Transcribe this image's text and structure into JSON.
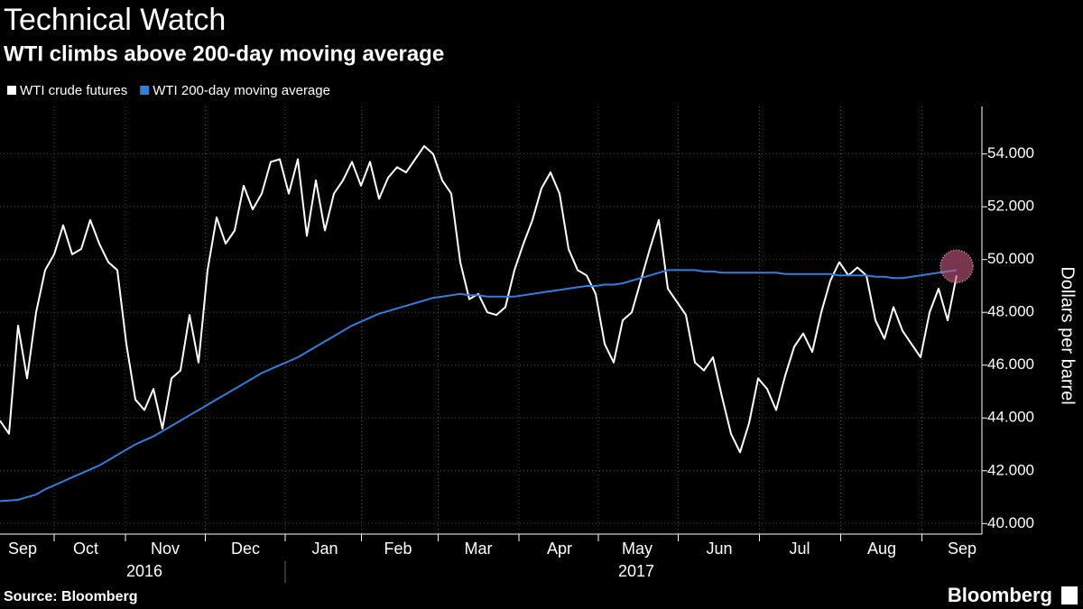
{
  "chart_data": {
    "type": "line",
    "title": "Technical Watch",
    "subtitle": "WTI climbs above 200-day moving average",
    "y_label": "Dollars per barrel",
    "source": "Source: Bloomberg",
    "brand": "Bloomberg",
    "series": [
      {
        "name": "WTI crude futures",
        "color": "#ffffff",
        "values": [
          43.9,
          43.4,
          47.5,
          45.5,
          48.0,
          49.6,
          50.2,
          51.3,
          50.2,
          50.4,
          51.5,
          50.6,
          49.9,
          49.6,
          46.8,
          44.7,
          44.3,
          45.1,
          43.6,
          45.5,
          45.8,
          47.9,
          46.1,
          49.6,
          51.6,
          50.6,
          51.1,
          52.8,
          51.9,
          52.5,
          53.7,
          53.8,
          52.5,
          53.8,
          50.9,
          53.0,
          51.1,
          52.5,
          53.0,
          53.7,
          52.8,
          53.7,
          52.3,
          53.1,
          53.5,
          53.3,
          53.8,
          54.3,
          54.0,
          53.0,
          52.5,
          49.9,
          48.5,
          48.7,
          48.0,
          47.9,
          48.2,
          49.6,
          50.6,
          51.5,
          52.7,
          53.3,
          52.5,
          50.4,
          49.6,
          49.4,
          48.7,
          46.8,
          46.1,
          47.7,
          48.0,
          49.2,
          50.4,
          51.5,
          48.9,
          48.4,
          47.9,
          46.1,
          45.8,
          46.3,
          44.8,
          43.4,
          42.7,
          43.8,
          45.5,
          45.1,
          44.3,
          45.6,
          46.7,
          47.2,
          46.5,
          48.0,
          49.2,
          49.9,
          49.4,
          49.7,
          49.4,
          47.7,
          47.0,
          48.2,
          47.3,
          46.8,
          46.3,
          48.0,
          48.9,
          47.7,
          49.4
        ]
      },
      {
        "name": "WTI 200-day moving average",
        "color": "#2d7fe0",
        "values": [
          40.85,
          40.87,
          40.9,
          41.0,
          41.1,
          41.3,
          41.45,
          41.6,
          41.75,
          41.9,
          42.05,
          42.2,
          42.4,
          42.6,
          42.8,
          43.0,
          43.15,
          43.3,
          43.5,
          43.7,
          43.9,
          44.1,
          44.3,
          44.5,
          44.7,
          44.9,
          45.1,
          45.3,
          45.5,
          45.7,
          45.85,
          46.0,
          46.15,
          46.3,
          46.5,
          46.7,
          46.9,
          47.1,
          47.3,
          47.5,
          47.65,
          47.8,
          47.95,
          48.05,
          48.15,
          48.25,
          48.35,
          48.45,
          48.55,
          48.6,
          48.65,
          48.7,
          48.65,
          48.65,
          48.6,
          48.6,
          48.6,
          48.6,
          48.65,
          48.7,
          48.75,
          48.8,
          48.85,
          48.9,
          48.95,
          49.0,
          49.0,
          49.05,
          49.05,
          49.1,
          49.2,
          49.3,
          49.4,
          49.5,
          49.6,
          49.6,
          49.6,
          49.6,
          49.55,
          49.55,
          49.5,
          49.5,
          49.5,
          49.5,
          49.5,
          49.5,
          49.5,
          49.45,
          49.45,
          49.45,
          49.45,
          49.45,
          49.45,
          49.4,
          49.4,
          49.4,
          49.4,
          49.35,
          49.35,
          49.3,
          49.3,
          49.35,
          49.4,
          49.45,
          49.5,
          49.55,
          49.6
        ]
      }
    ],
    "xlim": [
      0,
      108.8
    ],
    "xticks": [
      {
        "value": 2.5,
        "label": "Sep"
      },
      {
        "value": 9.5,
        "label": "Oct"
      },
      {
        "value": 18.3,
        "label": "Nov"
      },
      {
        "value": 27.2,
        "label": "Dec"
      },
      {
        "value": 36,
        "label": "Jan"
      },
      {
        "value": 44.1,
        "label": "Feb"
      },
      {
        "value": 53,
        "label": "Mar"
      },
      {
        "value": 62,
        "label": "Apr"
      },
      {
        "value": 70.6,
        "label": "May"
      },
      {
        "value": 79.7,
        "label": "Jun"
      },
      {
        "value": 88.6,
        "label": "Jul"
      },
      {
        "value": 97.7,
        "label": "Aug"
      },
      {
        "value": 106.6,
        "label": "Sep"
      }
    ],
    "year_labels": [
      {
        "value": 16,
        "label": "2016"
      },
      {
        "value": 70.5,
        "label": "2017"
      }
    ],
    "ylim": [
      39.6,
      55.8
    ],
    "yticks": [
      {
        "value": 40,
        "label": "40.000"
      },
      {
        "value": 42,
        "label": "42.000"
      },
      {
        "value": 44,
        "label": "44.000"
      },
      {
        "value": 46,
        "label": "46.000"
      },
      {
        "value": 48,
        "label": "48.000"
      },
      {
        "value": 50,
        "label": "50.000"
      },
      {
        "value": 52,
        "label": "52.000"
      },
      {
        "value": 54,
        "label": "54.000"
      }
    ],
    "grid": true
  }
}
